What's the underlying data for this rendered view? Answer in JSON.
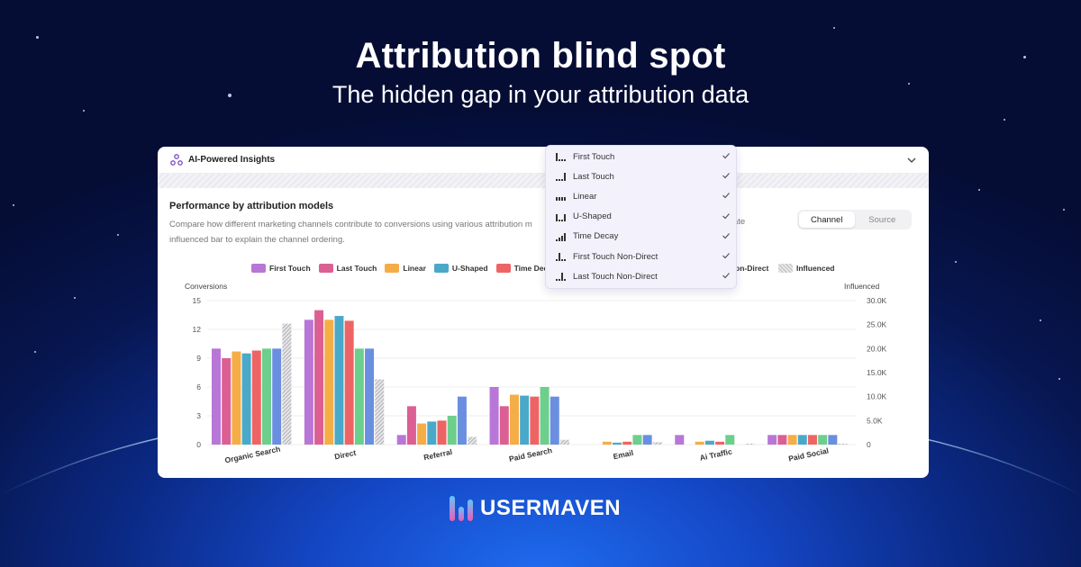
{
  "hero": {
    "title": "Attribution blind spot",
    "subtitle": "The hidden gap in your attribution data"
  },
  "card": {
    "header_title": "AI-Powered Insights",
    "header_icon": "ai-sparkle-icon",
    "section_title": "Performance by attribution models",
    "description_line1": "Compare how different marketing channels contribute to conversions using various attribution m",
    "description_line1_end": "eparate",
    "description_line2": "influenced bar to explain the channel ordering.",
    "toggle": {
      "options": [
        "Channel",
        "Source"
      ],
      "selected": "Channel"
    }
  },
  "colors": {
    "first_touch": "#b877d6",
    "last_touch": "#dc5f94",
    "linear": "#f5ad46",
    "u_shaped": "#4aa9c9",
    "time_decay": "#ee6464",
    "first_touch_non_direct": "#6ccf8c",
    "last_touch_non_direct": "#6a8fe0",
    "influenced": "#c6c6ca",
    "brand_gradient_start": "#5ec8ff",
    "brand_gradient_end": "#ef5bb4"
  },
  "dropdown": {
    "items": [
      {
        "label": "First Touch",
        "checked": true
      },
      {
        "label": "Last Touch",
        "checked": true
      },
      {
        "label": "Linear",
        "checked": true
      },
      {
        "label": "U-Shaped",
        "checked": true
      },
      {
        "label": "Time Decay",
        "checked": true
      },
      {
        "label": "First Touch Non-Direct",
        "checked": true
      },
      {
        "label": "Last Touch Non-Direct",
        "checked": true
      }
    ]
  },
  "legend": {
    "items": [
      "First Touch",
      "Last Touch",
      "Linear",
      "U-Shaped",
      "Time Dec"
    ],
    "partial_hidden": "on-Direct",
    "influenced": "Influenced"
  },
  "chart_data": {
    "type": "bar",
    "ylabel": "Conversions",
    "y2label": "Influenced",
    "ylim": [
      0,
      15
    ],
    "y2lim": [
      0,
      30000
    ],
    "yticks": [
      "0",
      "3",
      "6",
      "9",
      "12",
      "15"
    ],
    "y2ticks": [
      "0",
      "5.0K",
      "10.0K",
      "15.0K",
      "20.0K",
      "25.0K",
      "30.0K"
    ],
    "categories": [
      "Organic Search",
      "Direct",
      "Referral",
      "Paid Search",
      "Email",
      "Ai Traffic",
      "Paid Social"
    ],
    "series": [
      {
        "name": "First Touch",
        "values": [
          10,
          13,
          1,
          6,
          0,
          1,
          1
        ]
      },
      {
        "name": "Last Touch",
        "values": [
          9,
          14,
          4,
          4,
          0,
          0,
          1
        ]
      },
      {
        "name": "Linear",
        "values": [
          9.7,
          13,
          2.2,
          5.2,
          0.3,
          0.3,
          1
        ]
      },
      {
        "name": "U-Shaped",
        "values": [
          9.5,
          13.4,
          2.4,
          5.1,
          0.2,
          0.4,
          1
        ]
      },
      {
        "name": "Time Decay",
        "values": [
          9.8,
          12.9,
          2.5,
          5,
          0.3,
          0.3,
          1
        ]
      },
      {
        "name": "First Touch Non-Direct",
        "values": [
          10,
          10,
          3,
          6,
          1,
          1,
          1
        ]
      },
      {
        "name": "Last Touch Non-Direct",
        "values": [
          10,
          10,
          5,
          5,
          1,
          0,
          1
        ]
      },
      {
        "name": "Influenced",
        "values": [
          25200,
          13600,
          1600,
          1000,
          500,
          200,
          200
        ]
      }
    ],
    "grid": true,
    "legend_position": "top"
  },
  "brand": {
    "name": "USERMAVEN",
    "logo_icon": "usermaven-logo-icon"
  }
}
